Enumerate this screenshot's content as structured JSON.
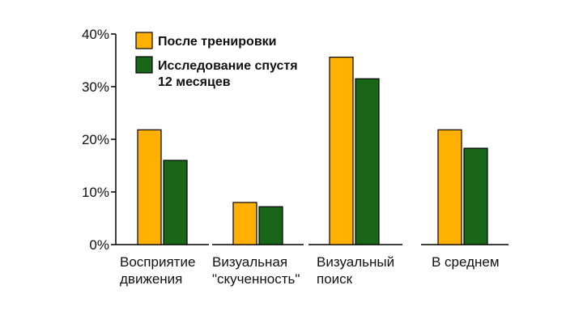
{
  "chart_data": {
    "type": "bar",
    "categories": [
      [
        "Восприятие",
        "движения"
      ],
      [
        "Визуальная",
        "\"скученность\""
      ],
      [
        "Визуальный",
        "поиск"
      ],
      [
        "В среднем"
      ]
    ],
    "series": [
      {
        "name": [
          "После тренировки"
        ],
        "color": "#FFB000",
        "values": [
          21.8,
          8.0,
          35.6,
          21.8
        ]
      },
      {
        "name": [
          "Исследование спустя",
          "12 месяцев"
        ],
        "color": "#196619",
        "values": [
          16.0,
          7.2,
          31.5,
          18.3
        ]
      }
    ],
    "yticks": [
      "0%",
      "10%",
      "20%",
      "30%",
      "40%"
    ],
    "ylim": [
      0,
      40
    ],
    "legend": "top-left",
    "grid": false
  }
}
